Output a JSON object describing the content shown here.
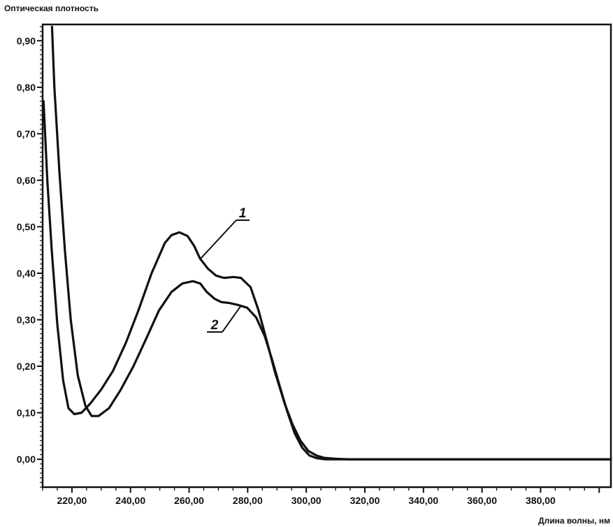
{
  "chart_data": {
    "type": "line",
    "ylabel": "Оптическая плотность",
    "xlabel": "Длина волны, нм",
    "xlim": [
      210,
      404
    ],
    "ylim": [
      -0.06,
      0.935
    ],
    "x_ticks": [
      220,
      240,
      260,
      280,
      300,
      320,
      340,
      360,
      380
    ],
    "x_tick_labels": [
      "220,00",
      "240,00",
      "260,00",
      "280,00",
      "300,00",
      "320,00",
      "340,00",
      "360,00",
      "380,00"
    ],
    "y_ticks": [
      0.0,
      0.1,
      0.2,
      0.3,
      0.4,
      0.5,
      0.6,
      0.7,
      0.8,
      0.9
    ],
    "y_tick_labels": [
      "0,00",
      "0,10",
      "0,20",
      "0,30",
      "0,40",
      "0,50",
      "0,60",
      "0,70",
      "0,80",
      "0,90"
    ],
    "grid": false,
    "legend": "none",
    "series": [
      {
        "name": "1",
        "x": [
          210.3,
          211.6,
          213.1,
          215.0,
          217.0,
          218.8,
          220.8,
          223.3,
          226.3,
          230.0,
          234.0,
          238.4,
          242.7,
          247.2,
          251.7,
          254.0,
          256.7,
          259.5,
          261.8,
          263.7,
          266.4,
          269.2,
          271.9,
          275.2,
          277.7,
          281.0,
          283.7,
          286.5,
          289.2,
          292.6,
          295.3,
          298.0,
          300.7,
          303.5,
          306.2,
          310.0,
          314.0,
          320.0,
          340.0,
          360.0,
          380.0,
          404.0
        ],
        "values": [
          0.77,
          0.6,
          0.45,
          0.29,
          0.17,
          0.11,
          0.097,
          0.1,
          0.12,
          0.15,
          0.19,
          0.25,
          0.32,
          0.4,
          0.465,
          0.482,
          0.488,
          0.48,
          0.458,
          0.432,
          0.41,
          0.395,
          0.39,
          0.392,
          0.39,
          0.37,
          0.32,
          0.255,
          0.19,
          0.12,
          0.075,
          0.04,
          0.018,
          0.008,
          0.003,
          0.001,
          0.0,
          0.0,
          0.0,
          0.0,
          0.0,
          0.0
        ]
      },
      {
        "name": "2",
        "x": [
          213.2,
          214.0,
          215.7,
          217.6,
          219.6,
          222.0,
          224.6,
          226.7,
          229.1,
          232.7,
          236.7,
          241.0,
          245.4,
          249.7,
          254.0,
          257.7,
          261.3,
          263.8,
          266.0,
          268.7,
          271.0,
          273.7,
          276.6,
          279.8,
          282.9,
          285.8,
          288.3,
          290.8,
          293.4,
          296.1,
          298.6,
          301.1,
          303.7,
          306.5,
          310.0,
          314.0,
          320.0,
          340.0,
          360.0,
          380.0,
          404.0
        ],
        "values": [
          0.93,
          0.8,
          0.62,
          0.45,
          0.3,
          0.18,
          0.115,
          0.093,
          0.093,
          0.11,
          0.15,
          0.2,
          0.26,
          0.32,
          0.36,
          0.378,
          0.383,
          0.378,
          0.36,
          0.345,
          0.338,
          0.336,
          0.332,
          0.326,
          0.305,
          0.265,
          0.215,
          0.16,
          0.105,
          0.055,
          0.025,
          0.008,
          0.002,
          0.0,
          0.0,
          0.0,
          0.0,
          0.0,
          0.0,
          0.0,
          0.0
        ]
      }
    ],
    "annotations": [
      {
        "text": "1",
        "points_to": [
          264,
          0.432
        ]
      },
      {
        "text": "2",
        "points_to": [
          277.7,
          0.33
        ]
      }
    ]
  }
}
